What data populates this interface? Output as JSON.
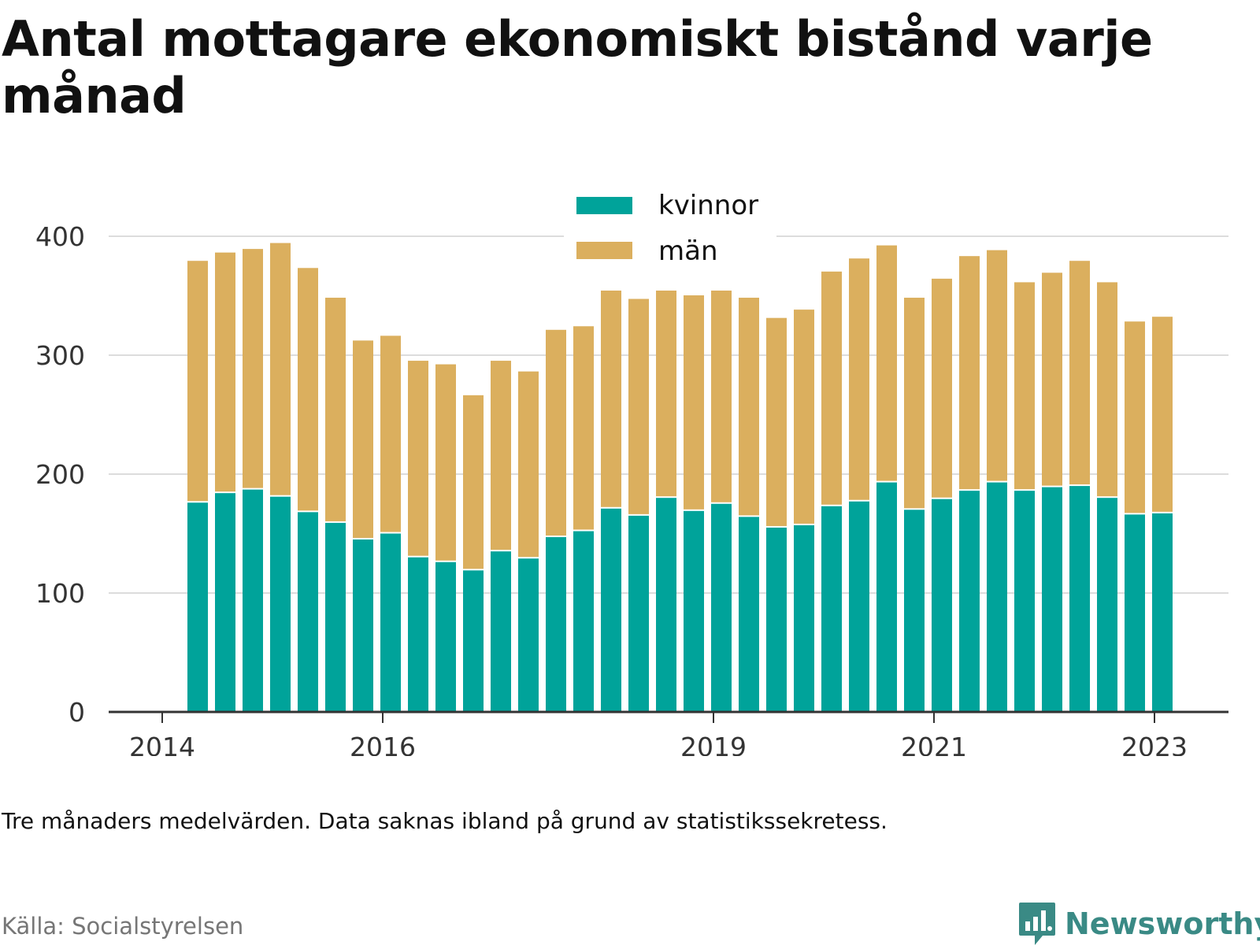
{
  "title": "Antal mottagare ekonomiskt bistånd varje månad",
  "note": "Tre månaders medelvärden. Data saknas ibland på grund av statistikssekretess.",
  "source": "Källa: Socialstyrelsen",
  "brand": {
    "name": "Newsworthy",
    "logo_icon": "newsworthy-logo-icon",
    "color": "#3a8a85"
  },
  "colors": {
    "kvinnor": "#00a39a",
    "man": "#dbaf5e",
    "man_faint": "#f7ebd8"
  },
  "chart_data": {
    "type": "bar",
    "stacked": true,
    "x_tick_labels": [
      "2014",
      "2016",
      "2019",
      "2021",
      "2023"
    ],
    "ylim": [
      0,
      400
    ],
    "yticks": [
      0,
      100,
      200,
      300,
      400
    ],
    "grid": true,
    "legend": {
      "placement": "top-center"
    },
    "series": [
      {
        "name": "kvinnor",
        "values": [
          176,
          184,
          187,
          181,
          168,
          159,
          145,
          150,
          130,
          126,
          119,
          135,
          129,
          147,
          152,
          171,
          165,
          180,
          169,
          175,
          164,
          155,
          157,
          173,
          177,
          193,
          170,
          179,
          186,
          193,
          186,
          189,
          190,
          180,
          166,
          167
        ]
      },
      {
        "name": "män",
        "values": [
          202,
          201,
          201,
          212,
          204,
          188,
          166,
          165,
          164,
          165,
          146,
          159,
          156,
          173,
          171,
          182,
          181,
          173,
          180,
          178,
          183,
          175,
          180,
          196,
          203,
          198,
          177,
          184,
          196,
          194,
          174,
          179,
          188,
          180,
          161,
          164
        ]
      }
    ]
  }
}
